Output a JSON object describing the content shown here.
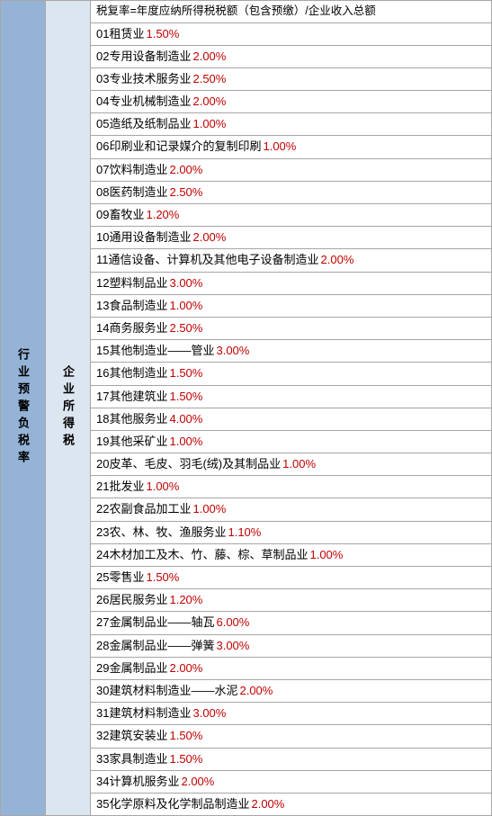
{
  "leftLabel": "行业预警负税率",
  "midLabel": "企业所得税",
  "formula": "税复率=年度应纳所得税税额（包含预缴）/企业收入总额",
  "rows": [
    {
      "num": "01",
      "name": "租赁业",
      "rate": "1.50%"
    },
    {
      "num": "02",
      "name": "专用设备制造业",
      "rate": "2.00%"
    },
    {
      "num": "03",
      "name": "专业技术服务业",
      "rate": "2.50%"
    },
    {
      "num": "04",
      "name": "专业机械制造业",
      "rate": "2.00%"
    },
    {
      "num": "05",
      "name": "造纸及纸制品业",
      "rate": "1.00%"
    },
    {
      "num": "06",
      "name": "印刷业和记录媒介的复制印刷",
      "rate": "1.00%"
    },
    {
      "num": "07",
      "name": "饮料制造业",
      "rate": "2.00%"
    },
    {
      "num": "08",
      "name": "医药制造业",
      "rate": "2.50%"
    },
    {
      "num": "09",
      "name": "畜牧业",
      "rate": "1.20%"
    },
    {
      "num": "10",
      "name": "通用设备制造业",
      "rate": "2.00%"
    },
    {
      "num": "11",
      "name": "通信设备、计算机及其他电子设备制造业",
      "rate": "2.00%"
    },
    {
      "num": "12",
      "name": "塑料制品业",
      "rate": "3.00%"
    },
    {
      "num": "13",
      "name": "食品制造业",
      "rate": "1.00%"
    },
    {
      "num": "14",
      "name": "商务服务业",
      "rate": "2.50%"
    },
    {
      "num": "15",
      "name": "其他制造业——管业",
      "rate": "3.00%"
    },
    {
      "num": "16",
      "name": "其他制造业",
      "rate": "1.50%"
    },
    {
      "num": "17",
      "name": "其他建筑业",
      "rate": "1.50%"
    },
    {
      "num": "18",
      "name": "其他服务业",
      "rate": "4.00%"
    },
    {
      "num": "19",
      "name": "其他采矿业",
      "rate": "1.00%"
    },
    {
      "num": "20",
      "name": "皮革、毛皮、羽毛(绒)及其制品业",
      "rate": "1.00%"
    },
    {
      "num": "21",
      "name": "批发业",
      "rate": "1.00%"
    },
    {
      "num": "22",
      "name": "农副食品加工业",
      "rate": "1.00%"
    },
    {
      "num": "23",
      "name": "农、林、牧、渔服务业",
      "rate": "1.10%"
    },
    {
      "num": "24",
      "name": "木材加工及木、竹、藤、棕、草制品业",
      "rate": "1.00%"
    },
    {
      "num": "25",
      "name": "零售业",
      "rate": "1.50%"
    },
    {
      "num": "26",
      "name": "居民服务业",
      "rate": "1.20%"
    },
    {
      "num": "27",
      "name": "金属制品业——轴瓦",
      "rate": "6.00%"
    },
    {
      "num": "28",
      "name": "金属制品业——弹簧",
      "rate": "3.00%"
    },
    {
      "num": "29",
      "name": "金属制品业",
      "rate": "2.00%",
      "nospace": true
    },
    {
      "num": "30",
      "name": "建筑材料制造业——水泥",
      "rate": "2.00%"
    },
    {
      "num": "31",
      "name": "建筑材料制造业",
      "rate": "3.00%"
    },
    {
      "num": "32",
      "name": "建筑安装业",
      "rate": "1.50%"
    },
    {
      "num": "33",
      "name": "家具制造业",
      "rate": "1.50%"
    },
    {
      "num": "34",
      "name": "计算机服务业",
      "rate": "2.00%"
    },
    {
      "num": "35",
      "name": "化学原料及化学制品制造业",
      "rate": "2.00%"
    }
  ]
}
